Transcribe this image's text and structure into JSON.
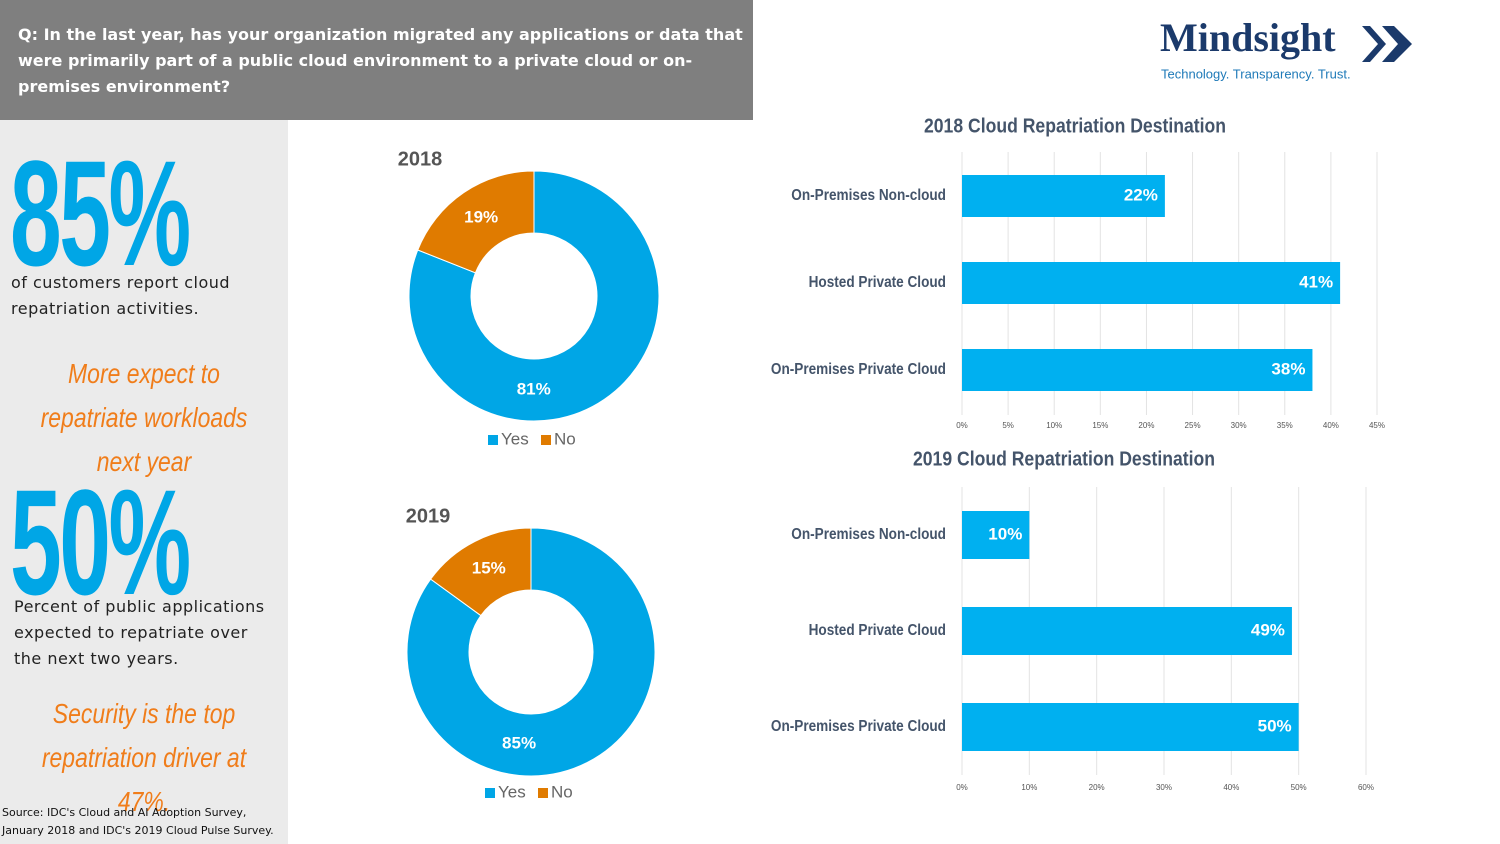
{
  "header": {
    "question": "Q: In the last year, has your organization migrated any applications or data that were primarily part of a public cloud environment to a private cloud or on-premises environment?"
  },
  "logo": {
    "name": "Mindsight",
    "tagline": "Technology. Transparency. Trust."
  },
  "stats": {
    "first_figure": "85%",
    "first_text": "of customers report cloud repatriation activities.",
    "first_note": "More expect to repatriate workloads next year",
    "second_figure": "50%",
    "second_text": "Percent of public applications expected to repatriate over the next two years.",
    "second_note": "Security is the top repatriation driver at 47%."
  },
  "source": "Source: IDC's Cloud and AI Adoption Survey, January 2018 and IDC's 2019 Cloud Pulse Survey.",
  "chart_data": [
    {
      "type": "donut",
      "title": "2018",
      "categories": [
        "Yes",
        "No"
      ],
      "values": [
        81,
        19
      ],
      "value_labels": [
        "81%",
        "19%"
      ],
      "colors": [
        "#00a6e6",
        "#e07b00"
      ],
      "legend": "bottom"
    },
    {
      "type": "donut",
      "title": "2019",
      "categories": [
        "Yes",
        "No"
      ],
      "values": [
        85,
        15
      ],
      "value_labels": [
        "85%",
        "15%"
      ],
      "colors": [
        "#00a6e6",
        "#e07b00"
      ],
      "legend": "bottom"
    },
    {
      "type": "bar",
      "orientation": "horizontal",
      "title": "2018 Cloud Repatriation Destination",
      "categories": [
        "On-Premises Non-cloud",
        "Hosted Private Cloud",
        "On-Premises Private Cloud"
      ],
      "values": [
        22,
        41,
        38
      ],
      "value_labels": [
        "22%",
        "41%",
        "38%"
      ],
      "color": "#00b0f0",
      "xlim": [
        0,
        45
      ],
      "xticks": [
        {
          "value": 0,
          "label": "0%"
        },
        {
          "value": 5,
          "label": "5%"
        },
        {
          "value": 10,
          "label": "10%"
        },
        {
          "value": 15,
          "label": "15%"
        },
        {
          "value": 20,
          "label": "20%"
        },
        {
          "value": 25,
          "label": "25%"
        },
        {
          "value": 30,
          "label": "30%"
        },
        {
          "value": 35,
          "label": "35%"
        },
        {
          "value": 40,
          "label": "40%"
        },
        {
          "value": 45,
          "label": "45%"
        }
      ],
      "grid": true
    },
    {
      "type": "bar",
      "orientation": "horizontal",
      "title": "2019 Cloud Repatriation Destination",
      "categories": [
        "On-Premises Non-cloud",
        "Hosted Private Cloud",
        "On-Premises Private Cloud"
      ],
      "values": [
        10,
        49,
        50
      ],
      "value_labels": [
        "10%",
        "49%",
        "50%"
      ],
      "color": "#00b0f0",
      "xlim": [
        0,
        60
      ],
      "xticks": [
        {
          "value": 0,
          "label": "0%"
        },
        {
          "value": 10,
          "label": "10%"
        },
        {
          "value": 20,
          "label": "20%"
        },
        {
          "value": 30,
          "label": "30%"
        },
        {
          "value": 40,
          "label": "40%"
        },
        {
          "value": 50,
          "label": "50%"
        },
        {
          "value": 60,
          "label": "60%"
        }
      ],
      "grid": true
    }
  ]
}
